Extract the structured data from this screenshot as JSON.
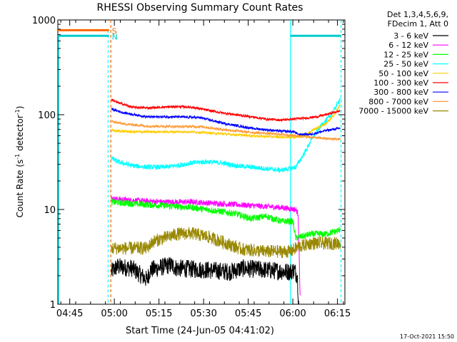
{
  "chart_data": {
    "type": "line",
    "title": "RHESSI Observing Summary Count Rates",
    "xlabel": "Start Time (24-Jun-05 04:41:02)",
    "ylabel_main": "Count Rate (s",
    "ylabel_sup1": "-1",
    "ylabel_mid": " detector",
    "ylabel_sup2": "-1",
    "ylabel_end": ")",
    "yscale": "log",
    "xlim": [
      0,
      96.5
    ],
    "ylim": [
      1,
      1000
    ],
    "x_units": "minutes after 04:41:02",
    "xticks": [
      {
        "label": "04:45",
        "x": 4
      },
      {
        "label": "05:00",
        "x": 19
      },
      {
        "label": "05:15",
        "x": 34
      },
      {
        "label": "05:30",
        "x": 49
      },
      {
        "label": "05:45",
        "x": 64
      },
      {
        "label": "06:00",
        "x": 79
      },
      {
        "label": "06:15",
        "x": 94
      }
    ],
    "yticks": [
      {
        "label": "1",
        "v": 1
      },
      {
        "label": "10",
        "v": 10
      },
      {
        "label": "100",
        "v": 100
      },
      {
        "label": "1000",
        "v": 1000
      }
    ],
    "legend_header": [
      "Det 1,3,4,5,6,9,",
      "FDecim 1, Att 0"
    ],
    "legend_position": "right",
    "series": [
      {
        "name": "3 - 6 keV",
        "color": "#000000",
        "x": [
          18,
          20,
          25,
          30,
          31,
          38,
          40,
          50,
          58,
          62,
          70,
          78,
          79.5,
          80.5,
          81
        ],
        "y": [
          2.2,
          2.5,
          2.4,
          1.8,
          2.3,
          2.6,
          2.4,
          2.3,
          2.2,
          2.4,
          2.3,
          2.2,
          2.3,
          2.0,
          1
        ],
        "noise": 0.22
      },
      {
        "name": "6 - 12 keV",
        "color": "#ff00ff",
        "x": [
          18,
          25,
          35,
          45,
          55,
          65,
          75,
          80,
          80.8,
          81.5
        ],
        "y": [
          13,
          12.5,
          12,
          12,
          11.5,
          11,
          10.5,
          10,
          9,
          1
        ],
        "noise": 0.07
      },
      {
        "name": "12 - 25 keV",
        "color": "#00ff00",
        "x": [
          18,
          25,
          35,
          45,
          55,
          60,
          65,
          70,
          75,
          79,
          80,
          85,
          90,
          94.5,
          95
        ],
        "y": [
          12,
          11.5,
          11,
          10.5,
          9.5,
          9,
          8,
          8.5,
          7.5,
          7.5,
          5,
          5.5,
          5.5,
          6,
          6.5
        ],
        "noise": 0.08
      },
      {
        "name": "25 - 50 keV",
        "color": "#00ffff",
        "x": [
          18,
          20,
          25,
          30,
          35,
          40,
          45,
          50,
          55,
          60,
          65,
          70,
          75,
          78,
          80,
          83,
          86,
          89,
          92,
          95
        ],
        "y": [
          35,
          32,
          29,
          28,
          28,
          29,
          31,
          32,
          31,
          29,
          28,
          27,
          26,
          27,
          28,
          40,
          60,
          80,
          100,
          150
        ],
        "noise": 0.06
      },
      {
        "name": "50 - 100 keV",
        "color": "#ffcc00",
        "x": [
          18,
          25,
          35,
          45,
          55,
          65,
          75,
          80,
          83,
          86,
          90,
          93,
          95
        ],
        "y": [
          68,
          66,
          66,
          66,
          63,
          60,
          58,
          58,
          60,
          70,
          80,
          100,
          130
        ],
        "noise": 0.03
      },
      {
        "name": "100 - 300 keV",
        "color": "#ff0000",
        "x": [
          18,
          20,
          25,
          30,
          35,
          40,
          45,
          50,
          55,
          60,
          65,
          70,
          75,
          79,
          83,
          87,
          90,
          95
        ],
        "y": [
          145,
          135,
          120,
          118,
          120,
          122,
          120,
          112,
          105,
          100,
          95,
          90,
          88,
          90,
          92,
          95,
          100,
          110
        ],
        "noise": 0.03
      },
      {
        "name": "300 - 800 keV",
        "color": "#0000ff",
        "x": [
          18,
          22,
          30,
          40,
          48,
          55,
          65,
          75,
          79.5,
          80.5,
          85,
          90,
          95
        ],
        "y": [
          115,
          105,
          95,
          95,
          93,
          82,
          72,
          67,
          66,
          62,
          62,
          68,
          72
        ],
        "noise": 0.03
      },
      {
        "name": "800 - 7000 keV",
        "color": "#ff9933",
        "x": [
          18,
          22,
          30,
          40,
          48,
          55,
          65,
          75,
          80,
          85,
          90,
          95
        ],
        "y": [
          85,
          80,
          76,
          75,
          75,
          70,
          65,
          62,
          60,
          58,
          56,
          55
        ],
        "noise": 0.03
      },
      {
        "name": "7000 - 15000 keV",
        "color": "#998800",
        "x": [
          18,
          25,
          30,
          32,
          40,
          45,
          50,
          55,
          60,
          62,
          70,
          78,
          79.5,
          80.5,
          85,
          90,
          95
        ],
        "y": [
          3.9,
          3.9,
          3.9,
          4.6,
          5.5,
          5.6,
          5.2,
          4.6,
          4.0,
          3.8,
          3.6,
          3.6,
          3.8,
          4.0,
          4.4,
          4.4,
          4.4
        ],
        "noise": 0.16
      }
    ],
    "flags": [
      {
        "label": "S",
        "color": "#ff6600",
        "x_start": 0,
        "x_end": 17.2,
        "y": 780
      },
      {
        "label": "N",
        "color": "#00cccc",
        "x_start": 0,
        "x_end": 17.2,
        "y": 680
      }
    ],
    "flag_saa_right": {
      "color": "#00cccc",
      "x_start": 78.2,
      "x_end": 95.2,
      "y": 680
    },
    "vlines": [
      {
        "x": 0.3,
        "color": "#00ffff",
        "dash": false,
        "top": 680
      },
      {
        "x": 16.9,
        "color": "#00ffff",
        "dash": true,
        "top": 780
      },
      {
        "x": 17.8,
        "color": "#ff6600",
        "dash": true,
        "top": 1000
      },
      {
        "x": 78.2,
        "color": "#00ffff",
        "dash": false,
        "top": 1000
      },
      {
        "x": 95.2,
        "color": "#00ffff",
        "dash": true,
        "top": 1000
      }
    ],
    "timestamp": "17-Oct-2021 15:50"
  }
}
